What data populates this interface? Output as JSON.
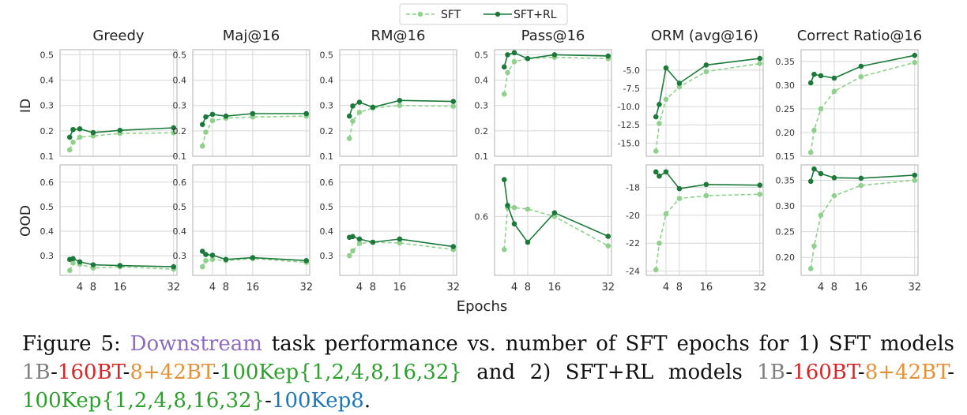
{
  "legend": {
    "labels": [
      "SFT",
      "SFT+RL"
    ],
    "placement": "top-center"
  },
  "colors": {
    "sft": "#8fd18c",
    "sftrl": "#1b7a3a",
    "grid": "#d7d7d7",
    "axis": "#bdbdbd",
    "gray": "#7f7f7f",
    "red": "#d62728",
    "orange": "#e69138",
    "green": "#2ca02c",
    "blue": "#1f77b4",
    "purple": "#8e6cbf"
  },
  "xlabel": "Epochs",
  "row_labels": [
    "ID",
    "OOD"
  ],
  "chart_data": [
    {
      "type": "line",
      "title": "Greedy",
      "row": "ID",
      "x": [
        1,
        2,
        4,
        8,
        16,
        32
      ],
      "xticks": [
        4,
        8,
        16,
        32
      ],
      "ylim": [
        0.1,
        0.52
      ],
      "yticks": [
        "0.1",
        "0.2",
        "0.3",
        "0.4",
        "0.5"
      ],
      "grid": true,
      "series": [
        {
          "name": "SFT",
          "values": [
            0.125,
            0.155,
            0.175,
            0.18,
            0.19,
            0.192
          ]
        },
        {
          "name": "SFT+RL",
          "values": [
            0.175,
            0.205,
            0.208,
            0.193,
            0.202,
            0.212
          ]
        }
      ]
    },
    {
      "type": "line",
      "title": "Maj@16",
      "row": "ID",
      "x": [
        1,
        2,
        4,
        8,
        16,
        32
      ],
      "xticks": [
        4,
        8,
        16,
        32
      ],
      "ylim": [
        0.1,
        0.52
      ],
      "yticks": [
        "0.1",
        "0.2",
        "0.3",
        "0.4",
        "0.5"
      ],
      "grid": true,
      "series": [
        {
          "name": "SFT",
          "values": [
            0.14,
            0.195,
            0.24,
            0.25,
            0.255,
            0.258
          ]
        },
        {
          "name": "SFT+RL",
          "values": [
            0.225,
            0.255,
            0.265,
            0.258,
            0.268,
            0.268
          ]
        }
      ]
    },
    {
      "type": "line",
      "title": "RM@16",
      "row": "ID",
      "x": [
        1,
        2,
        4,
        8,
        16,
        32
      ],
      "xticks": [
        4,
        8,
        16,
        32
      ],
      "ylim": [
        0.1,
        0.52
      ],
      "yticks": [
        "0.1",
        "0.2",
        "0.3",
        "0.4",
        "0.5"
      ],
      "grid": true,
      "series": [
        {
          "name": "SFT",
          "values": [
            0.17,
            0.238,
            0.273,
            0.29,
            0.3,
            0.297
          ]
        },
        {
          "name": "SFT+RL",
          "values": [
            0.258,
            0.298,
            0.313,
            0.293,
            0.32,
            0.316
          ]
        }
      ]
    },
    {
      "type": "line",
      "title": "Pass@16",
      "row": "ID",
      "x": [
        1,
        2,
        4,
        8,
        16,
        32
      ],
      "xticks": [
        4,
        8,
        16,
        32
      ],
      "ylim": [
        0.1,
        0.52
      ],
      "yticks": [
        "0.1",
        "0.2",
        "0.3",
        "0.4",
        "0.5"
      ],
      "grid": true,
      "series": [
        {
          "name": "SFT",
          "values": [
            0.345,
            0.43,
            0.473,
            0.485,
            0.49,
            0.485
          ]
        },
        {
          "name": "SFT+RL",
          "values": [
            0.452,
            0.5,
            0.508,
            0.485,
            0.5,
            0.495
          ]
        }
      ]
    },
    {
      "type": "line",
      "title": "ORM (avg@16)",
      "row": "ID",
      "x": [
        1,
        2,
        4,
        8,
        16,
        32
      ],
      "xticks": [
        4,
        8,
        16,
        32
      ],
      "ylim": [
        -16.8,
        -2.2
      ],
      "yticks": [
        "-15.0",
        "-12.5",
        "-10.0",
        "-7.5",
        "-5.0"
      ],
      "grid": true,
      "series": [
        {
          "name": "SFT",
          "values": [
            -16.1,
            -12.3,
            -9.0,
            -7.3,
            -5.2,
            -4.1
          ]
        },
        {
          "name": "SFT+RL",
          "values": [
            -11.4,
            -9.7,
            -4.7,
            -6.8,
            -4.3,
            -3.4
          ]
        }
      ]
    },
    {
      "type": "line",
      "title": "Correct Ratio@16",
      "row": "ID",
      "x": [
        1,
        2,
        4,
        8,
        16,
        32
      ],
      "xticks": [
        4,
        8,
        16,
        32
      ],
      "ylim": [
        0.15,
        0.375
      ],
      "yticks": [
        "0.15",
        "0.20",
        "0.25",
        "0.30",
        "0.35"
      ],
      "grid": true,
      "series": [
        {
          "name": "SFT",
          "values": [
            0.158,
            0.205,
            0.25,
            0.287,
            0.318,
            0.348
          ]
        },
        {
          "name": "SFT+RL",
          "values": [
            0.305,
            0.323,
            0.32,
            0.315,
            0.34,
            0.363
          ]
        }
      ]
    },
    {
      "type": "line",
      "title": "",
      "row": "OOD",
      "x": [
        1,
        2,
        4,
        8,
        16,
        32
      ],
      "xticks": [
        4,
        8,
        16,
        32
      ],
      "ylim": [
        0.22,
        0.67
      ],
      "yticks": [
        "0.3",
        "0.4",
        "0.5",
        "0.6"
      ],
      "grid": true,
      "series": [
        {
          "name": "SFT",
          "values": [
            0.24,
            0.27,
            0.265,
            0.25,
            0.255,
            0.245
          ]
        },
        {
          "name": "SFT+RL",
          "values": [
            0.285,
            0.288,
            0.275,
            0.263,
            0.26,
            0.255
          ]
        }
      ]
    },
    {
      "type": "line",
      "title": "",
      "row": "OOD",
      "x": [
        1,
        2,
        4,
        8,
        16,
        32
      ],
      "xticks": [
        4,
        8,
        16,
        32
      ],
      "ylim": [
        0.22,
        0.67
      ],
      "yticks": [
        "0.3",
        "0.4",
        "0.5",
        "0.6"
      ],
      "grid": true,
      "series": [
        {
          "name": "SFT",
          "values": [
            0.255,
            0.28,
            0.285,
            0.28,
            0.288,
            0.273
          ]
        },
        {
          "name": "SFT+RL",
          "values": [
            0.318,
            0.305,
            0.302,
            0.285,
            0.292,
            0.28
          ]
        }
      ]
    },
    {
      "type": "line",
      "title": "",
      "row": "OOD",
      "x": [
        1,
        2,
        4,
        8,
        16,
        32
      ],
      "xticks": [
        4,
        8,
        16,
        32
      ],
      "ylim": [
        0.22,
        0.67
      ],
      "yticks": [
        "0.3",
        "0.4",
        "0.5",
        "0.6"
      ],
      "grid": true,
      "series": [
        {
          "name": "SFT",
          "values": [
            0.3,
            0.32,
            0.35,
            0.355,
            0.352,
            0.325
          ]
        },
        {
          "name": "SFT+RL",
          "values": [
            0.375,
            0.378,
            0.368,
            0.355,
            0.368,
            0.337
          ]
        }
      ]
    },
    {
      "type": "line",
      "title": "",
      "row": "OOD",
      "x": [
        1,
        2,
        4,
        8,
        16,
        32
      ],
      "xticks": [
        4,
        8,
        16,
        32
      ],
      "ylim": [
        0.52,
        0.67
      ],
      "yticks": [
        "0.6"
      ],
      "grid": true,
      "series": [
        {
          "name": "SFT",
          "values": [
            0.555,
            0.612,
            0.612,
            0.61,
            0.6,
            0.56
          ]
        },
        {
          "name": "SFT+RL",
          "values": [
            0.65,
            0.615,
            0.59,
            0.565,
            0.605,
            0.573
          ]
        }
      ]
    },
    {
      "type": "line",
      "title": "",
      "row": "OOD",
      "x": [
        1,
        2,
        4,
        8,
        16,
        32
      ],
      "xticks": [
        4,
        8,
        16,
        32
      ],
      "ylim": [
        -24.3,
        -16.4
      ],
      "yticks": [
        "-24",
        "-22",
        "-20",
        "-18"
      ],
      "grid": true,
      "series": [
        {
          "name": "SFT",
          "values": [
            -23.9,
            -22.0,
            -19.9,
            -18.8,
            -18.6,
            -18.5
          ]
        },
        {
          "name": "SFT+RL",
          "values": [
            -16.9,
            -17.2,
            -16.9,
            -18.1,
            -17.8,
            -17.85
          ]
        }
      ]
    },
    {
      "type": "line",
      "title": "",
      "row": "OOD",
      "x": [
        1,
        2,
        4,
        8,
        16,
        32
      ],
      "xticks": [
        4,
        8,
        16,
        32
      ],
      "ylim": [
        0.165,
        0.38
      ],
      "yticks": [
        "0.20",
        "0.25",
        "0.30",
        "0.35"
      ],
      "grid": true,
      "series": [
        {
          "name": "SFT",
          "values": [
            0.178,
            0.222,
            0.282,
            0.32,
            0.34,
            0.35
          ]
        },
        {
          "name": "SFT+RL",
          "values": [
            0.348,
            0.372,
            0.363,
            0.355,
            0.354,
            0.36
          ]
        }
      ]
    }
  ],
  "caption": {
    "segments": [
      {
        "text": "Figure 5: ",
        "color": "#111111"
      },
      {
        "text": "Downstream",
        "color": "#8e6cbf"
      },
      {
        "text": " task performance vs. number of SFT epochs for 1) SFT models ",
        "color": "#111111"
      },
      {
        "text": "1B",
        "color": "#7f7f7f"
      },
      {
        "text": "-",
        "color": "#111111"
      },
      {
        "text": "160BT",
        "color": "#d62728"
      },
      {
        "text": "-",
        "color": "#111111"
      },
      {
        "text": "8+42BT",
        "color": "#e69138"
      },
      {
        "text": "-",
        "color": "#111111"
      },
      {
        "text": "100Kep{1,2,4,8,16,32}",
        "color": "#2ca02c"
      },
      {
        "text": " and 2) SFT+RL models ",
        "color": "#111111"
      },
      {
        "text": "1B",
        "color": "#7f7f7f"
      },
      {
        "text": "-",
        "color": "#111111"
      },
      {
        "text": "160BT",
        "color": "#d62728"
      },
      {
        "text": "-",
        "color": "#111111"
      },
      {
        "text": "8+42BT",
        "color": "#e69138"
      },
      {
        "text": "-",
        "color": "#111111"
      },
      {
        "text": "100Kep{1,2,4,8,16,32}",
        "color": "#2ca02c"
      },
      {
        "text": "-",
        "color": "#111111"
      },
      {
        "text": "100Kep8",
        "color": "#1f77b4"
      },
      {
        "text": ".",
        "color": "#111111"
      }
    ]
  }
}
